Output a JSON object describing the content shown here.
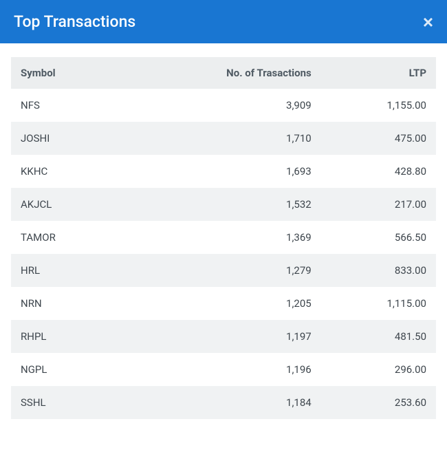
{
  "header": {
    "title": "Top Transactions",
    "close_label": "×"
  },
  "colors": {
    "header_bg": "#1976d2",
    "header_text": "#ffffff",
    "thead_bg": "#eceeef",
    "row_even_bg": "#f0f2f3",
    "row_odd_bg": "#ffffff",
    "th_text": "#4f5a63",
    "td_text": "#3e464d"
  },
  "table": {
    "columns": [
      {
        "label": "Symbol",
        "align": "left"
      },
      {
        "label": "No. of Trasactions",
        "align": "right"
      },
      {
        "label": "LTP",
        "align": "right"
      }
    ],
    "rows": [
      {
        "symbol": "NFS",
        "transactions": "3,909",
        "ltp": "1,155.00"
      },
      {
        "symbol": "JOSHI",
        "transactions": "1,710",
        "ltp": "475.00"
      },
      {
        "symbol": "KKHC",
        "transactions": "1,693",
        "ltp": "428.80"
      },
      {
        "symbol": "AKJCL",
        "transactions": "1,532",
        "ltp": "217.00"
      },
      {
        "symbol": "TAMOR",
        "transactions": "1,369",
        "ltp": "566.50"
      },
      {
        "symbol": "HRL",
        "transactions": "1,279",
        "ltp": "833.00"
      },
      {
        "symbol": "NRN",
        "transactions": "1,205",
        "ltp": "1,115.00"
      },
      {
        "symbol": "RHPL",
        "transactions": "1,197",
        "ltp": "481.50"
      },
      {
        "symbol": "NGPL",
        "transactions": "1,196",
        "ltp": "296.00"
      },
      {
        "symbol": "SSHL",
        "transactions": "1,184",
        "ltp": "253.60"
      }
    ]
  }
}
